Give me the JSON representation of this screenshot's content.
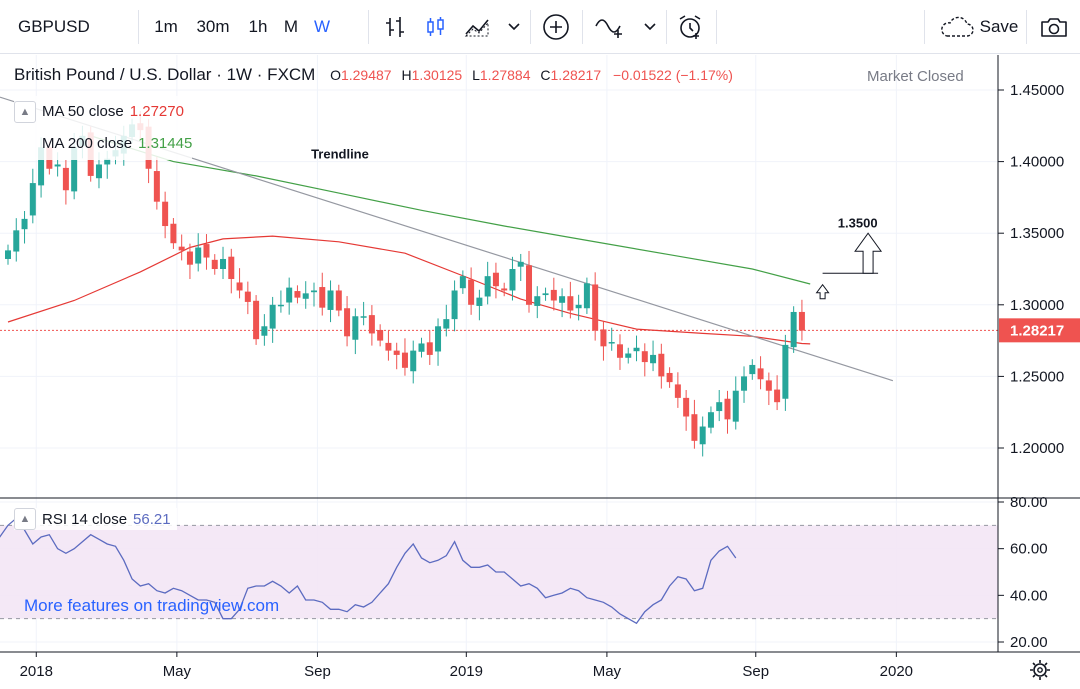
{
  "toolbar": {
    "symbol": "GBPUSD",
    "intervals": [
      "1m",
      "30m",
      "1h",
      "M",
      "W"
    ],
    "active_interval": "W",
    "save_label": "Save",
    "icons": [
      "bar-chart-icon",
      "candle-chart-icon",
      "area-chart-icon",
      "chevron-down-icon",
      "plus-circle-icon",
      "indicator-icon",
      "alarm-clock-icon",
      "cloud-save-icon",
      "camera-icon"
    ]
  },
  "header": {
    "title": "British Pound / U.S. Dollar · 1W · FXCM",
    "o_label": "O",
    "o_value": "1.29487",
    "h_label": "H",
    "h_value": "1.30125",
    "l_label": "L",
    "l_value": "1.27884",
    "c_label": "C",
    "c_value": "1.28217",
    "change": "−0.01522 (−1.17%)",
    "market_status": "Market Closed"
  },
  "legend": {
    "ma50_label": "MA  50 close",
    "ma50_value": "1.27270",
    "ma200_label": "MA  200 close",
    "ma200_value": "1.31445",
    "rsi_label": "RSI  14 close",
    "rsi_value": "56.21"
  },
  "watermark": "More features on tradingview.com",
  "colors": {
    "up": "#26a69a",
    "down": "#ef5350",
    "ma50": "#e53935",
    "ma200": "#43a047",
    "rsi_line": "#5c6bc0",
    "rsi_band": "#f3e5f5",
    "trendline": "#9598a1",
    "accent": "#2962ff"
  },
  "chart_data": [
    {
      "type": "candlestick",
      "title": "British Pound / U.S. Dollar · 1W · FXCM",
      "x_tick_labels": [
        "2018",
        "May",
        "Sep",
        "2019",
        "May",
        "Sep",
        "2020"
      ],
      "x_tick_weeks": [
        1,
        18,
        35,
        53,
        70,
        88,
        105
      ],
      "y_ticks": [
        "1.45000",
        "1.40000",
        "1.35000",
        "1.30000",
        "1.25000",
        "1.20000"
      ],
      "y_tick_values": [
        1.45,
        1.4,
        1.35,
        1.3,
        1.25,
        1.2
      ],
      "ylim": [
        1.175,
        1.475
      ],
      "last_price_label": "1.28217",
      "last_price": 1.28217,
      "annotations": [
        {
          "text": "Trendline",
          "week": 41,
          "price": 1.402
        },
        {
          "text": "1.3500",
          "week": 103,
          "price": 1.354
        }
      ],
      "trendline": {
        "from": {
          "week": 0,
          "price": 1.445
        },
        "to": {
          "week": 107,
          "price": 1.247
        }
      },
      "close": [
        1.338,
        1.352,
        1.36,
        1.385,
        1.41,
        1.395,
        1.398,
        1.38,
        1.41,
        1.418,
        1.39,
        1.398,
        1.402,
        1.408,
        1.418,
        1.426,
        1.422,
        1.395,
        1.372,
        1.355,
        1.343,
        1.338,
        1.328,
        1.34,
        1.333,
        1.325,
        1.332,
        1.318,
        1.31,
        1.302,
        1.276,
        1.285,
        1.3,
        1.3,
        1.312,
        1.305,
        1.308,
        1.31,
        1.298,
        1.31,
        1.296,
        1.278,
        1.292,
        1.292,
        1.28,
        1.275,
        1.268,
        1.265,
        1.256,
        1.268,
        1.273,
        1.265,
        1.285,
        1.29,
        1.31,
        1.32,
        1.3,
        1.305,
        1.32,
        1.313,
        1.31,
        1.325,
        1.33,
        1.3,
        1.306,
        1.308,
        1.303,
        1.306,
        1.296,
        1.3,
        1.315,
        1.282,
        1.271,
        1.274,
        1.263,
        1.266,
        1.27,
        1.26,
        1.265,
        1.25,
        1.246,
        1.235,
        1.222,
        1.205,
        1.215,
        1.225,
        1.232,
        1.22,
        1.24,
        1.25,
        1.258,
        1.248,
        1.24,
        1.232,
        1.272,
        1.295,
        1.282
      ],
      "ma50": {
        "label": "MA 50 close",
        "value": 1.2727,
        "points": [
          [
            0,
            1.288
          ],
          [
            8,
            1.303
          ],
          [
            16,
            1.323
          ],
          [
            22,
            1.34
          ],
          [
            26,
            1.346
          ],
          [
            32,
            1.348
          ],
          [
            40,
            1.344
          ],
          [
            48,
            1.336
          ],
          [
            56,
            1.318
          ],
          [
            62,
            1.304
          ],
          [
            68,
            1.294
          ],
          [
            76,
            1.283
          ],
          [
            84,
            1.28
          ],
          [
            90,
            1.278
          ],
          [
            96,
            1.273
          ],
          [
            97,
            1.2727
          ]
        ]
      },
      "ma200": {
        "label": "MA 200 close",
        "value": 1.31445,
        "points": [
          [
            10,
            1.418
          ],
          [
            20,
            1.4
          ],
          [
            30,
            1.39
          ],
          [
            40,
            1.378
          ],
          [
            50,
            1.366
          ],
          [
            60,
            1.355
          ],
          [
            70,
            1.345
          ],
          [
            80,
            1.335
          ],
          [
            90,
            1.325
          ],
          [
            97,
            1.3145
          ]
        ]
      }
    },
    {
      "type": "line",
      "title": "RSI 14 close",
      "y_ticks": [
        "80.00",
        "60.00",
        "40.00",
        "20.00"
      ],
      "y_tick_values": [
        80,
        60,
        40,
        20
      ],
      "ylim": [
        16,
        83
      ],
      "band": [
        30,
        70
      ],
      "values": [
        57,
        58,
        62,
        65,
        70,
        73,
        68,
        62,
        65,
        66,
        60,
        58,
        60,
        63,
        66,
        64,
        62,
        61,
        55,
        47,
        44,
        45,
        42,
        41,
        43,
        42,
        40,
        38,
        38,
        37,
        30,
        30,
        34,
        43,
        44,
        44,
        46,
        44,
        41,
        44,
        38,
        38,
        37,
        34,
        34,
        33,
        36,
        35,
        37,
        41,
        45,
        52,
        58,
        62,
        56,
        54,
        55,
        57,
        63,
        55,
        52,
        52,
        53,
        50,
        50,
        47,
        44,
        45,
        43,
        39,
        40,
        41,
        43,
        42,
        39,
        38,
        37,
        35,
        32,
        30,
        28,
        33,
        36,
        38,
        44,
        48,
        47,
        42,
        43,
        55,
        59,
        61,
        56
      ],
      "last_value": 56.21
    }
  ]
}
